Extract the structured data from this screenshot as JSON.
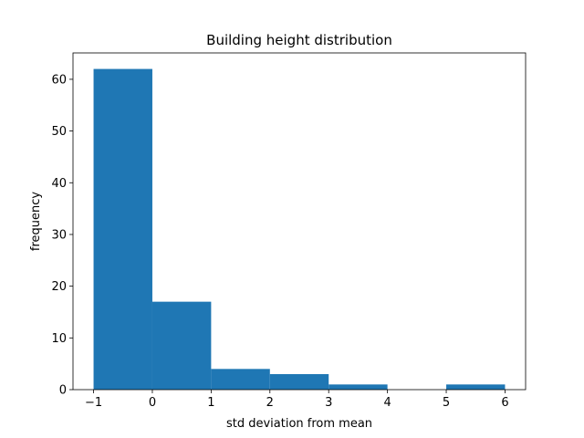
{
  "chart_data": {
    "type": "bar",
    "title": "Building height distribution",
    "xlabel": "std deviation from mean",
    "ylabel": "frequency",
    "bins": [
      {
        "x0": -1,
        "x1": 0,
        "count": 62
      },
      {
        "x0": 0,
        "x1": 1,
        "count": 17
      },
      {
        "x0": 1,
        "x1": 2,
        "count": 4
      },
      {
        "x0": 2,
        "x1": 3,
        "count": 3
      },
      {
        "x0": 3,
        "x1": 4,
        "count": 1
      },
      {
        "x0": 4,
        "x1": 5,
        "count": 0
      },
      {
        "x0": 5,
        "x1": 6,
        "count": 1
      }
    ],
    "xticks": [
      -1,
      0,
      1,
      2,
      3,
      4,
      5,
      6
    ],
    "xtick_labels": [
      "−1",
      "0",
      "1",
      "2",
      "3",
      "4",
      "5",
      "6"
    ],
    "yticks": [
      0,
      10,
      20,
      30,
      40,
      50,
      60
    ],
    "ytick_labels": [
      "0",
      "10",
      "20",
      "30",
      "40",
      "50",
      "60"
    ],
    "xlim": [
      -1.35,
      6.35
    ],
    "ylim": [
      0,
      65.1
    ],
    "bar_color": "#1f77b4",
    "grid": false,
    "legend": "none"
  }
}
